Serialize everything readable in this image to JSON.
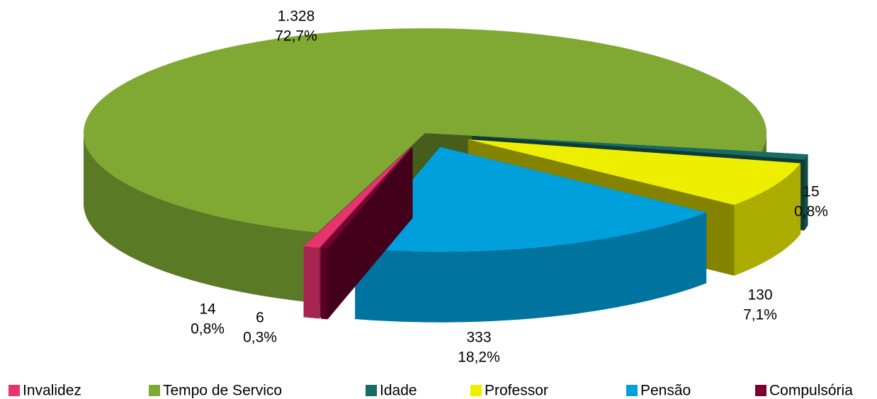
{
  "chart_data": {
    "type": "pie3d",
    "categories": [
      "Invalidez",
      "Tempo de Servico",
      "Idade",
      "Professor",
      "Pensão",
      "Compulsória"
    ],
    "values": [
      14,
      1328,
      15,
      130,
      333,
      6
    ],
    "value_labels": [
      "14",
      "1.328",
      "15",
      "130",
      "333",
      "6"
    ],
    "percent_labels": [
      "0,8%",
      "72,7%",
      "0,8%",
      "7,1%",
      "18,2%",
      "0,3%"
    ],
    "colors": [
      "#e8336f",
      "#7fa933",
      "#1a6b63",
      "#eeee00",
      "#00a0dd",
      "#7a0030"
    ],
    "legend": "bottom"
  }
}
